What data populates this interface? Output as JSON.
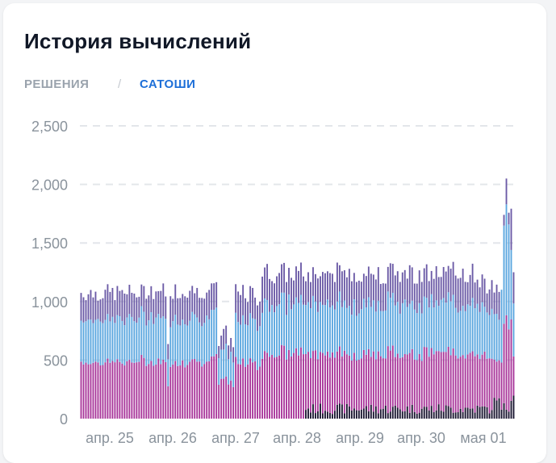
{
  "header": {
    "title": "История вычислений"
  },
  "tabs": [
    {
      "label": "РЕШЕНИЯ",
      "active": false
    },
    {
      "label": "/",
      "active": false
    },
    {
      "label": "САТОШИ",
      "active": true
    }
  ],
  "chart_data": {
    "type": "bar",
    "stacked": true,
    "title": "",
    "xlabel": "",
    "ylabel": "",
    "ylim": [
      0,
      2500
    ],
    "y_ticks": [
      "0",
      "500",
      "1,000",
      "1,500",
      "2,000",
      "2,500"
    ],
    "x_ticks": [
      "апр. 25",
      "апр. 26",
      "апр. 27",
      "апр. 28",
      "апр. 29",
      "апр. 30",
      "мая 01"
    ],
    "grid": true,
    "legend": "none",
    "colors": [
      "#1a1530",
      "#a8359a",
      "#5aa6df",
      "#6b5aa6"
    ],
    "series_totals_approx": {
      "apr24_25": 1050,
      "apr26": 1100,
      "apr27_dip": 700,
      "apr28_onward": 1300,
      "peak_may01": 2050
    }
  }
}
